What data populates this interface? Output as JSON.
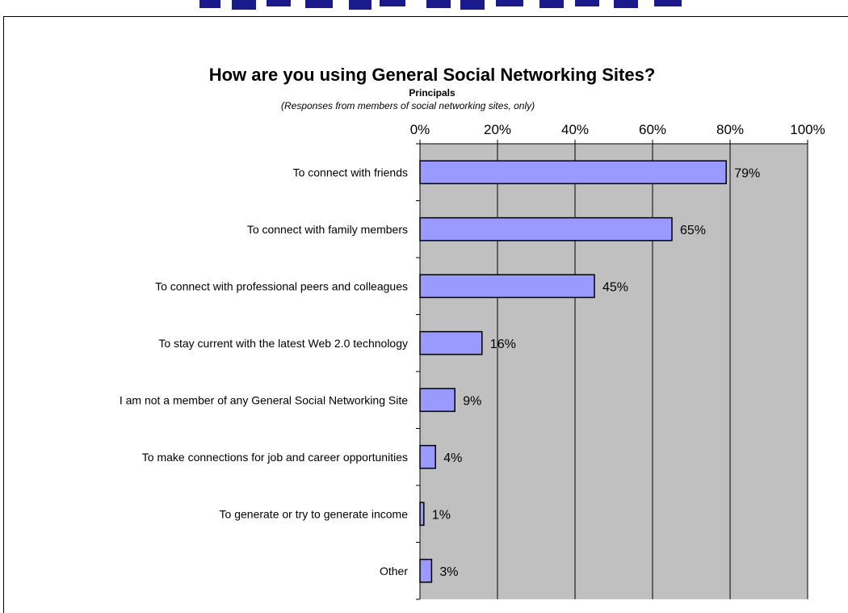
{
  "chart_data": {
    "type": "bar",
    "orientation": "horizontal",
    "title": "How are you using General Social Networking Sites?",
    "subtitle": "Principals",
    "note": "(Responses from members of social networking sites, only)",
    "categories": [
      "To connect with friends",
      "To connect with family members",
      "To connect with professional peers and colleagues",
      "To stay current with the latest Web 2.0 technology",
      "I am not a member of any General Social Networking Site",
      "To make connections for job and career opportunities",
      "To generate or try to generate income",
      "Other"
    ],
    "values": [
      79,
      65,
      45,
      16,
      9,
      4,
      1,
      3
    ],
    "data_labels": [
      "79%",
      "65%",
      "45%",
      "16%",
      "9%",
      "4%",
      "1%",
      "3%"
    ],
    "x_ticks": [
      "0%",
      "20%",
      "40%",
      "60%",
      "80%",
      "100%"
    ],
    "xlim": [
      0,
      100
    ],
    "x_axis_position": "top",
    "grid": true,
    "legend": "none",
    "colors": {
      "bar_fill": "#9999ff",
      "bar_stroke": "#000000",
      "plot_bg": "#c0c0c0",
      "grid": "#000000"
    }
  }
}
